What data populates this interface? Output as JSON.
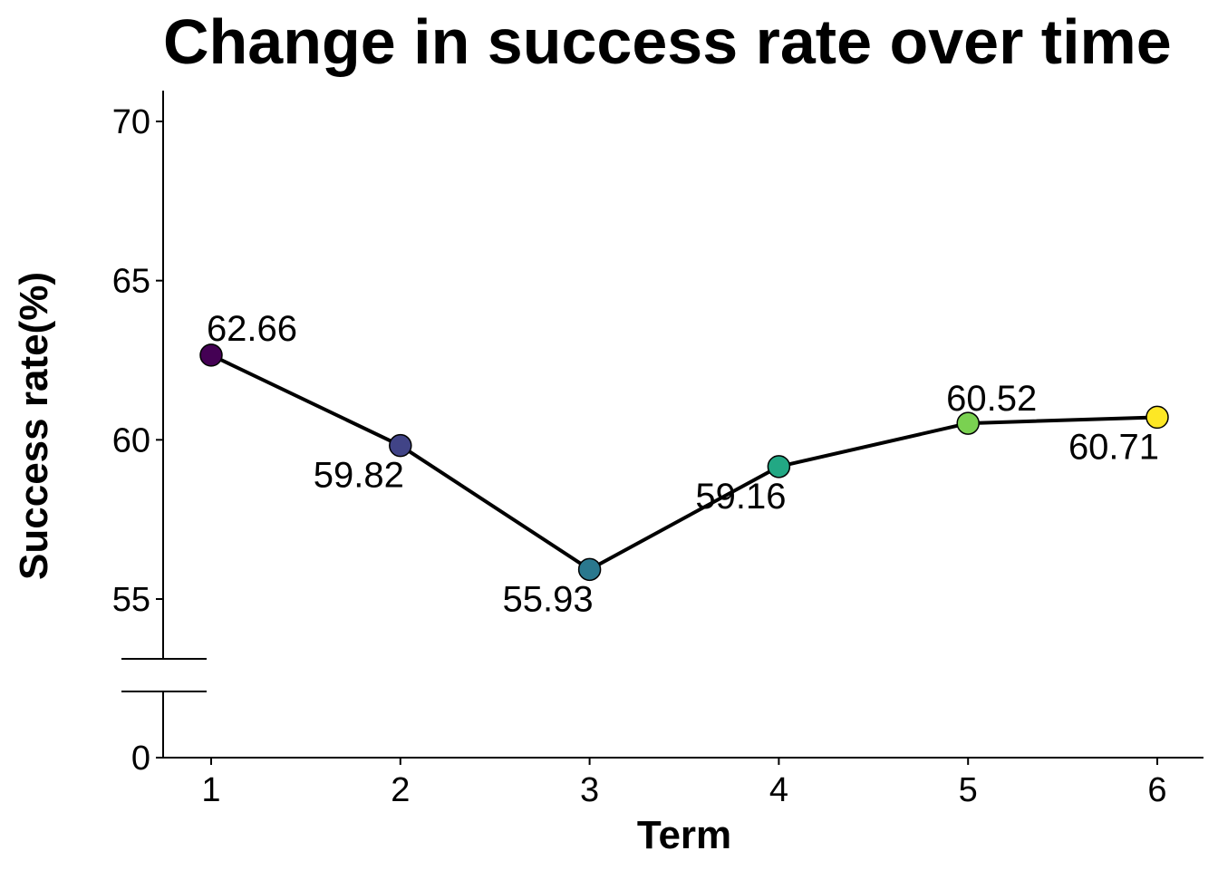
{
  "chart_data": {
    "type": "line",
    "title": "Change in success rate over time",
    "xlabel": "Term",
    "ylabel": "Success rate(%)",
    "x": [
      1,
      2,
      3,
      4,
      5,
      6
    ],
    "values": [
      62.66,
      59.82,
      55.93,
      59.16,
      60.52,
      60.71
    ],
    "data_labels": [
      "62.66",
      "59.82",
      "55.93",
      "59.16",
      "60.52",
      "60.71"
    ],
    "point_colors": [
      "#440154",
      "#414487",
      "#2A788E",
      "#22A884",
      "#7AD151",
      "#FDE725"
    ],
    "line_color": "#000000",
    "x_ticks": [
      "1",
      "2",
      "3",
      "4",
      "5",
      "6"
    ],
    "y_ticks_upper": [
      "55",
      "60",
      "65",
      "70"
    ],
    "y_ticks_lower": [
      "0"
    ],
    "ylim_upper": [
      53,
      71
    ],
    "ylim_lower": [
      0,
      53
    ],
    "axis_break": true,
    "grid": false,
    "legend": "none"
  }
}
